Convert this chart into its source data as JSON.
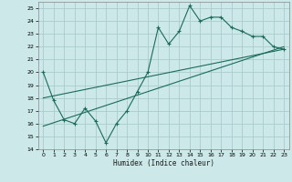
{
  "title": "",
  "xlabel": "Humidex (Indice chaleur)",
  "bg_color": "#cce8e8",
  "grid_color": "#aacccc",
  "line_color": "#1a6b5a",
  "xlim": [
    -0.5,
    23.5
  ],
  "ylim": [
    14,
    25.5
  ],
  "yticks": [
    14,
    15,
    16,
    17,
    18,
    19,
    20,
    21,
    22,
    23,
    24,
    25
  ],
  "xticks": [
    0,
    1,
    2,
    3,
    4,
    5,
    6,
    7,
    8,
    9,
    10,
    11,
    12,
    13,
    14,
    15,
    16,
    17,
    18,
    19,
    20,
    21,
    22,
    23
  ],
  "series1_x": [
    0,
    1,
    2,
    3,
    4,
    5,
    6,
    7,
    8,
    9,
    10,
    11,
    12,
    13,
    14,
    15,
    16,
    17,
    18,
    19,
    20,
    21,
    22,
    23
  ],
  "series1_y": [
    20.0,
    17.8,
    16.3,
    16.0,
    17.2,
    16.2,
    14.5,
    16.0,
    17.0,
    18.5,
    20.0,
    23.5,
    22.2,
    23.2,
    25.2,
    24.0,
    24.3,
    24.3,
    23.5,
    23.2,
    22.8,
    22.8,
    22.0,
    21.8
  ],
  "series2_x": [
    0,
    23
  ],
  "series2_y": [
    18.0,
    21.8
  ],
  "series3_x": [
    0,
    23
  ],
  "series3_y": [
    15.8,
    22.0
  ]
}
